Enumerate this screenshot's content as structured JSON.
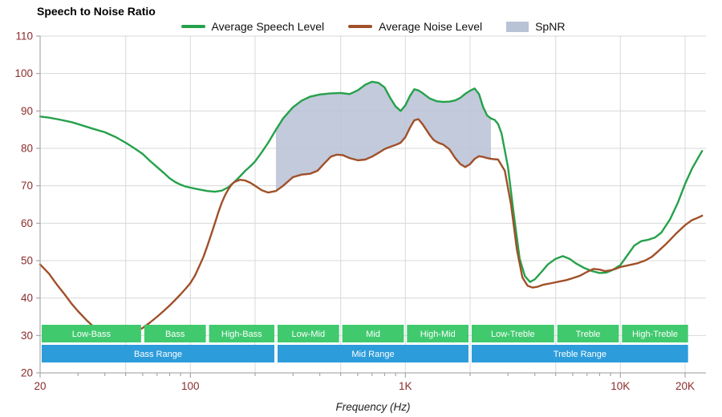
{
  "title": "Speech to Noise Ratio",
  "xaxis_label": "Frequency (Hz)",
  "legend": {
    "items": [
      {
        "label": "Average Speech Level",
        "swatch": "line",
        "color": "#26a14b"
      },
      {
        "label": "Average Noise Level",
        "swatch": "line",
        "color": "#a0502a"
      },
      {
        "label": "SpNR",
        "swatch": "area",
        "color": "#b9c3d6"
      }
    ]
  },
  "chart_data": {
    "type": "line",
    "title": "Speech to Noise Ratio",
    "xlabel": "Frequency (Hz)",
    "ylabel": "",
    "x_scale": "log",
    "grid": true,
    "legend_position": "top",
    "xlim": [
      20,
      25000
    ],
    "ylim": [
      20,
      110
    ],
    "y_ticks": [
      20,
      30,
      40,
      50,
      60,
      70,
      80,
      90,
      100,
      110
    ],
    "x_major_ticks": [
      {
        "value": 20,
        "label": "20"
      },
      {
        "value": 100,
        "label": "100"
      },
      {
        "value": 1000,
        "label": "1K"
      },
      {
        "value": 10000,
        "label": "10K"
      },
      {
        "value": 20000,
        "label": "20K"
      }
    ],
    "x_gridlines": [
      50,
      100,
      200,
      500,
      1000,
      2000,
      5000,
      10000,
      20000
    ],
    "colors": {
      "grid": "#d8d8d8",
      "axis": "#9a9a9a",
      "tick_label": "#8b2c2c",
      "spnr_fill": "#b9c3d6",
      "band_green": "#41c96e",
      "band_blue": "#2d9cdb"
    },
    "spnr_band": {
      "name": "SpNR",
      "from": 250,
      "to": 2500
    },
    "series": [
      {
        "name": "Average Speech Level",
        "id": "average-speech-level",
        "color": "#26a14b",
        "points": [
          [
            20,
            88.5
          ],
          [
            22,
            88.2
          ],
          [
            25,
            87.6
          ],
          [
            28,
            87
          ],
          [
            30,
            86.5
          ],
          [
            35,
            85.3
          ],
          [
            40,
            84.3
          ],
          [
            45,
            83
          ],
          [
            50,
            81.5
          ],
          [
            55,
            80
          ],
          [
            60,
            78.5
          ],
          [
            65,
            76.6
          ],
          [
            70,
            75
          ],
          [
            75,
            73.5
          ],
          [
            80,
            72
          ],
          [
            85,
            71
          ],
          [
            90,
            70.3
          ],
          [
            95,
            69.8
          ],
          [
            100,
            69.5
          ],
          [
            110,
            69
          ],
          [
            120,
            68.6
          ],
          [
            130,
            68.4
          ],
          [
            140,
            68.7
          ],
          [
            150,
            69.6
          ],
          [
            160,
            71
          ],
          [
            170,
            72.5
          ],
          [
            180,
            74
          ],
          [
            190,
            75.2
          ],
          [
            200,
            76.5
          ],
          [
            215,
            79
          ],
          [
            230,
            81.5
          ],
          [
            250,
            85
          ],
          [
            270,
            88
          ],
          [
            300,
            91
          ],
          [
            330,
            92.8
          ],
          [
            360,
            93.8
          ],
          [
            400,
            94.4
          ],
          [
            450,
            94.7
          ],
          [
            500,
            94.8
          ],
          [
            550,
            94.5
          ],
          [
            600,
            95.5
          ],
          [
            650,
            97
          ],
          [
            700,
            97.8
          ],
          [
            750,
            97.5
          ],
          [
            800,
            96.3
          ],
          [
            850,
            93.5
          ],
          [
            900,
            91.2
          ],
          [
            950,
            90
          ],
          [
            1000,
            91.5
          ],
          [
            1050,
            94
          ],
          [
            1100,
            95.8
          ],
          [
            1150,
            95.5
          ],
          [
            1200,
            94.8
          ],
          [
            1300,
            93.3
          ],
          [
            1400,
            92.6
          ],
          [
            1500,
            92.4
          ],
          [
            1600,
            92.5
          ],
          [
            1700,
            92.8
          ],
          [
            1800,
            93.5
          ],
          [
            1900,
            94.6
          ],
          [
            2000,
            95.4
          ],
          [
            2100,
            96
          ],
          [
            2200,
            94.5
          ],
          [
            2300,
            91
          ],
          [
            2400,
            88.8
          ],
          [
            2500,
            88
          ],
          [
            2600,
            87.6
          ],
          [
            2700,
            86.5
          ],
          [
            2800,
            84
          ],
          [
            3000,
            75
          ],
          [
            3200,
            62
          ],
          [
            3400,
            50.5
          ],
          [
            3600,
            45.8
          ],
          [
            3800,
            44.3
          ],
          [
            4000,
            45
          ],
          [
            4300,
            47
          ],
          [
            4600,
            49
          ],
          [
            5000,
            50.5
          ],
          [
            5400,
            51.2
          ],
          [
            5800,
            50.5
          ],
          [
            6200,
            49.3
          ],
          [
            6800,
            48
          ],
          [
            7400,
            47.2
          ],
          [
            8000,
            46.7
          ],
          [
            8600,
            46.8
          ],
          [
            9200,
            47.5
          ],
          [
            10000,
            48.8
          ],
          [
            10800,
            51.5
          ],
          [
            11600,
            54
          ],
          [
            12500,
            55.2
          ],
          [
            13500,
            55.6
          ],
          [
            14500,
            56.2
          ],
          [
            15500,
            57.5
          ],
          [
            17000,
            61
          ],
          [
            18500,
            65.5
          ],
          [
            20000,
            70.5
          ],
          [
            21500,
            74.5
          ],
          [
            23000,
            77.5
          ],
          [
            24000,
            79.3
          ]
        ]
      },
      {
        "name": "Average Noise Level",
        "id": "average-noise-level",
        "color": "#a0502a",
        "points": [
          [
            20,
            49
          ],
          [
            22,
            46.5
          ],
          [
            24,
            43.5
          ],
          [
            26,
            41
          ],
          [
            28,
            38.5
          ],
          [
            30,
            36.5
          ],
          [
            33,
            34
          ],
          [
            36,
            32
          ],
          [
            40,
            30.5
          ],
          [
            45,
            29.8
          ],
          [
            50,
            30
          ],
          [
            55,
            30.8
          ],
          [
            60,
            32
          ],
          [
            65,
            33.5
          ],
          [
            70,
            35
          ],
          [
            75,
            36.5
          ],
          [
            80,
            38
          ],
          [
            85,
            39.5
          ],
          [
            90,
            41
          ],
          [
            95,
            42.5
          ],
          [
            100,
            44
          ],
          [
            105,
            46
          ],
          [
            110,
            48.5
          ],
          [
            115,
            51
          ],
          [
            120,
            54
          ],
          [
            125,
            57
          ],
          [
            130,
            60
          ],
          [
            135,
            63
          ],
          [
            140,
            65.5
          ],
          [
            145,
            67.5
          ],
          [
            150,
            69
          ],
          [
            155,
            70.2
          ],
          [
            160,
            71
          ],
          [
            170,
            71.6
          ],
          [
            180,
            71.4
          ],
          [
            190,
            70.8
          ],
          [
            200,
            70
          ],
          [
            215,
            68.8
          ],
          [
            230,
            68.2
          ],
          [
            250,
            68.6
          ],
          [
            270,
            70
          ],
          [
            300,
            72.3
          ],
          [
            330,
            73
          ],
          [
            360,
            73.2
          ],
          [
            390,
            74
          ],
          [
            420,
            76
          ],
          [
            450,
            77.8
          ],
          [
            480,
            78.3
          ],
          [
            510,
            78.2
          ],
          [
            550,
            77.4
          ],
          [
            600,
            76.8
          ],
          [
            650,
            77
          ],
          [
            700,
            77.8
          ],
          [
            750,
            78.8
          ],
          [
            800,
            79.8
          ],
          [
            850,
            80.4
          ],
          [
            900,
            80.9
          ],
          [
            950,
            81.5
          ],
          [
            1000,
            83
          ],
          [
            1050,
            85.5
          ],
          [
            1100,
            87.5
          ],
          [
            1150,
            87.8
          ],
          [
            1200,
            86.5
          ],
          [
            1250,
            85
          ],
          [
            1300,
            83.5
          ],
          [
            1350,
            82.3
          ],
          [
            1400,
            81.7
          ],
          [
            1450,
            81.3
          ],
          [
            1500,
            81
          ],
          [
            1600,
            79.8
          ],
          [
            1700,
            77.5
          ],
          [
            1800,
            75.8
          ],
          [
            1900,
            75
          ],
          [
            2000,
            75.8
          ],
          [
            2100,
            77.2
          ],
          [
            2200,
            77.9
          ],
          [
            2300,
            77.7
          ],
          [
            2400,
            77.4
          ],
          [
            2500,
            77.2
          ],
          [
            2700,
            77
          ],
          [
            2900,
            74
          ],
          [
            3100,
            65
          ],
          [
            3300,
            53
          ],
          [
            3500,
            45.5
          ],
          [
            3700,
            43.3
          ],
          [
            3900,
            42.8
          ],
          [
            4100,
            43
          ],
          [
            4400,
            43.6
          ],
          [
            4800,
            44
          ],
          [
            5200,
            44.4
          ],
          [
            5600,
            44.8
          ],
          [
            6000,
            45.3
          ],
          [
            6500,
            46
          ],
          [
            7000,
            47
          ],
          [
            7500,
            47.8
          ],
          [
            8000,
            47.6
          ],
          [
            8500,
            47.2
          ],
          [
            9000,
            47.4
          ],
          [
            9500,
            47.8
          ],
          [
            10000,
            48.3
          ],
          [
            11000,
            48.8
          ],
          [
            12000,
            49.3
          ],
          [
            13000,
            50
          ],
          [
            14000,
            51
          ],
          [
            15000,
            52.5
          ],
          [
            16000,
            54
          ],
          [
            17000,
            55.5
          ],
          [
            18000,
            57
          ],
          [
            19000,
            58.3
          ],
          [
            20000,
            59.5
          ],
          [
            21500,
            60.8
          ],
          [
            23000,
            61.5
          ],
          [
            24000,
            62
          ]
        ]
      }
    ],
    "frequency_bands": [
      {
        "label": "Low-Bass",
        "from": 20,
        "to": 60
      },
      {
        "label": "Bass",
        "from": 60,
        "to": 120
      },
      {
        "label": "High-Bass",
        "from": 120,
        "to": 250
      },
      {
        "label": "Low-Mid",
        "from": 250,
        "to": 500
      },
      {
        "label": "Mid",
        "from": 500,
        "to": 1000
      },
      {
        "label": "High-Mid",
        "from": 1000,
        "to": 2000
      },
      {
        "label": "Low-Treble",
        "from": 2000,
        "to": 5000
      },
      {
        "label": "Treble",
        "from": 5000,
        "to": 10000
      },
      {
        "label": "High-Treble",
        "from": 10000,
        "to": 21000
      }
    ],
    "range_bands": [
      {
        "label": "Bass Range",
        "from": 20,
        "to": 250
      },
      {
        "label": "Mid Range",
        "from": 250,
        "to": 2000
      },
      {
        "label": "Treble Range",
        "from": 2000,
        "to": 21000
      }
    ]
  }
}
